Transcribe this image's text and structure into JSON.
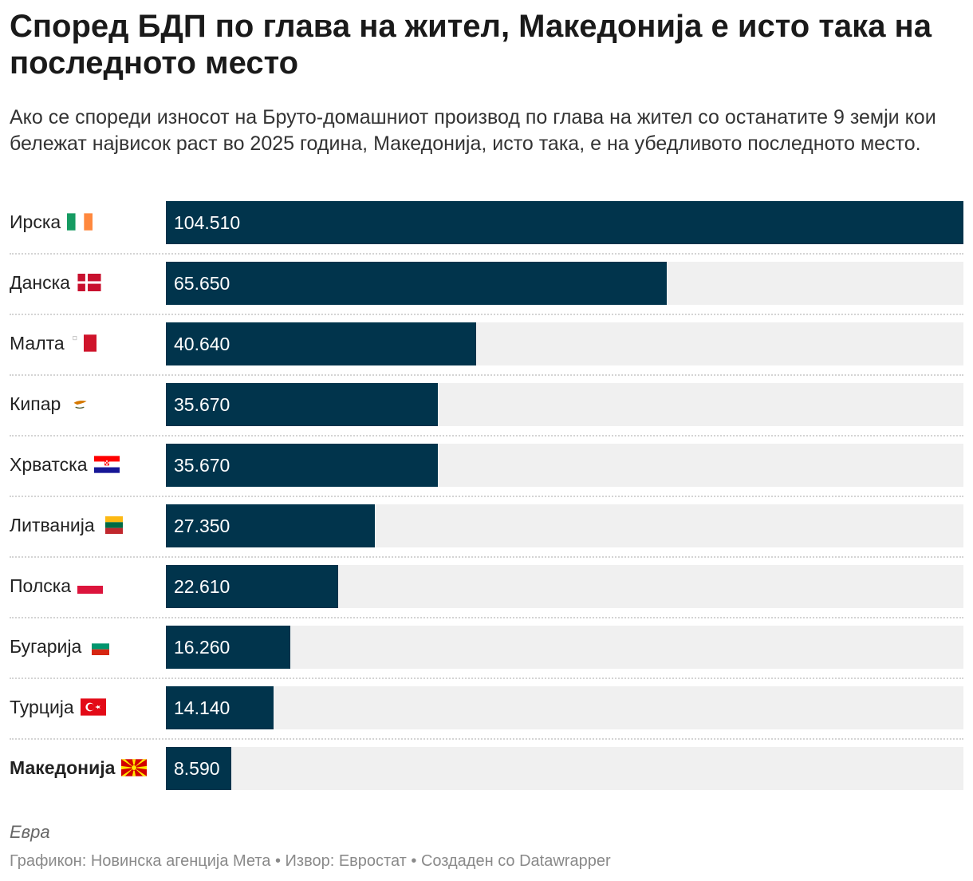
{
  "title": "Според БДП по глава на жител, Македонија е исто така на последното место",
  "subtitle": "Ако се спореди износот на Бруто-домашниот производ по глава на жител со останатите 9 земји кои бележат највисок раст во 2025 година, Македонија, исто така, е на убедливото последното место.",
  "note": "Евра",
  "footer": "Графикон: Новинска агенција Мета • Извор: Евростат • Создаден со Datawrapper",
  "colors": {
    "bar": "#01344c",
    "track": "#f0f0f0",
    "value_text": "#ffffff"
  },
  "chart_data": {
    "type": "bar",
    "orientation": "horizontal",
    "xlim": [
      0,
      104510
    ],
    "categories": [
      "Ирска",
      "Данска",
      "Малта",
      "Кипар",
      "Хрватска",
      "Литванија",
      "Полска",
      "Бугарија",
      "Турција",
      "Македонија"
    ],
    "values": [
      104510,
      65650,
      40640,
      35670,
      35670,
      27350,
      22610,
      16260,
      14140,
      8590
    ],
    "value_labels": [
      "104.510",
      "65.650",
      "40.640",
      "35.670",
      "35.670",
      "27.350",
      "22.610",
      "16.260",
      "14.140",
      "8.590"
    ],
    "flags": [
      "ireland-flag-icon",
      "denmark-flag-icon",
      "malta-flag-icon",
      "cyprus-flag-icon",
      "croatia-flag-icon",
      "lithuania-flag-icon",
      "poland-flag-icon",
      "bulgaria-flag-icon",
      "turkey-flag-icon",
      "macedonia-flag-icon"
    ],
    "highlight": "Македонија"
  }
}
